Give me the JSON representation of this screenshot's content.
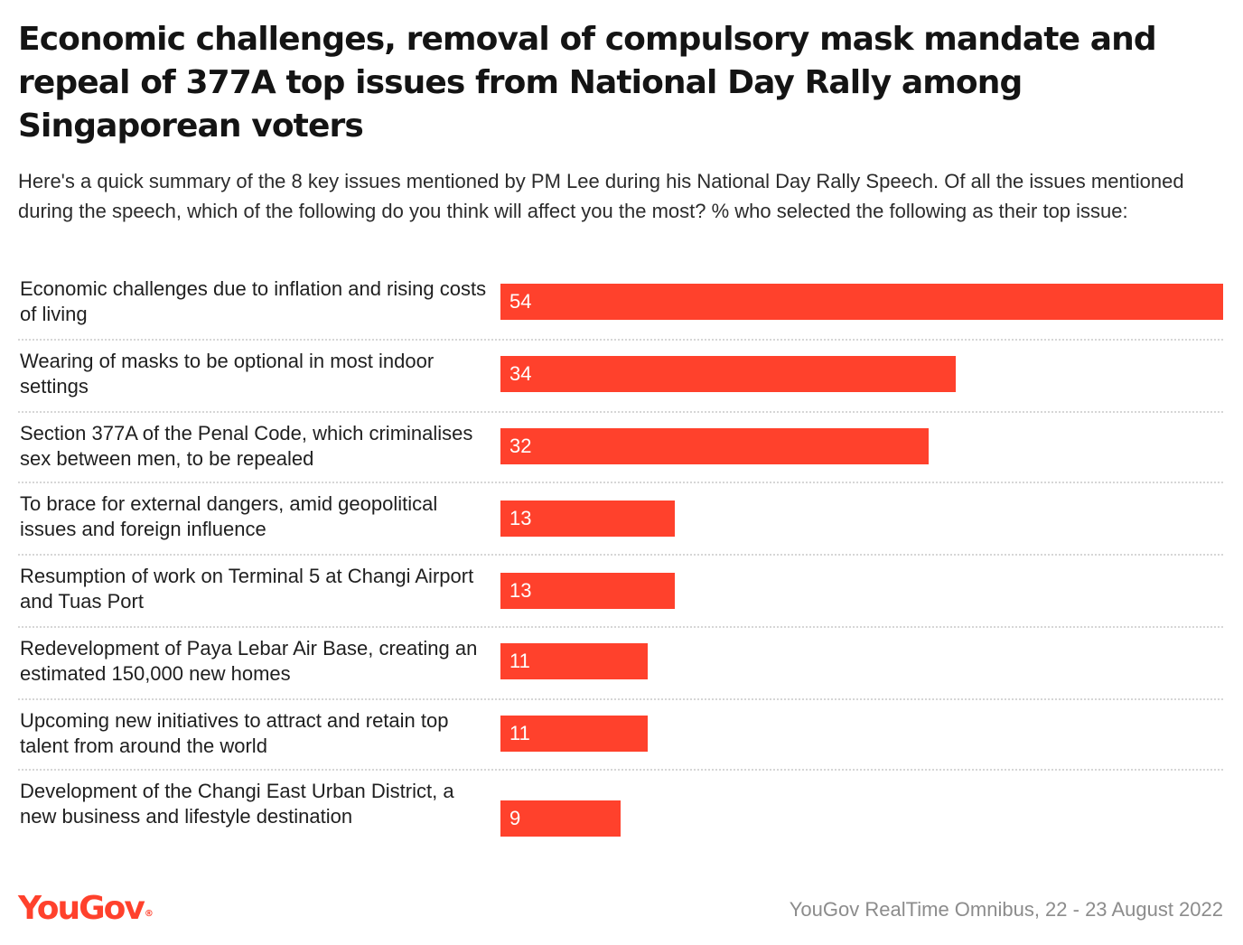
{
  "chart_data": {
    "type": "bar",
    "orientation": "horizontal",
    "title": "Economic challenges, removal of compulsory mask mandate and repeal of 377A top issues from National Day Rally among Singaporean voters",
    "subtitle": "Here's a quick summary of the 8 key issues mentioned by PM Lee during his National Day Rally Speech. Of all the issues mentioned during the speech, which of the following do you think will affect you the most? % who selected the following as their top issue:",
    "categories": [
      "Economic challenges due to inflation and rising costs of living",
      "Wearing of masks to be optional in most indoor settings",
      "Section 377A of the Penal Code, which criminalises sex between men, to be repealed",
      "To brace for external dangers, amid geopolitical issues and foreign influence",
      "Resumption of work on Terminal 5 at Changi Airport and Tuas Port",
      "Redevelopment of Paya Lebar Air Base, creating an estimated 150,000 new homes",
      "Upcoming new initiatives to attract and retain top talent from around the world",
      "Development of the Changi East Urban District, a new business and lifestyle destination"
    ],
    "values": [
      54,
      34,
      32,
      13,
      13,
      11,
      11,
      9
    ],
    "value_labels": [
      "54",
      "34",
      "32",
      "13",
      "13",
      "11",
      "11",
      "9"
    ],
    "xlim": [
      0,
      54
    ],
    "xlabel": "",
    "ylabel": "",
    "grid": false,
    "bar_color": "#ff412c"
  },
  "branding": {
    "logo": "YouGov",
    "logo_mark": "®",
    "source": "YouGov RealTime Omnibus, 22 - 23 August 2022"
  },
  "colors": {
    "accent": "#ff412c",
    "source_text": "#8c8c8c"
  }
}
